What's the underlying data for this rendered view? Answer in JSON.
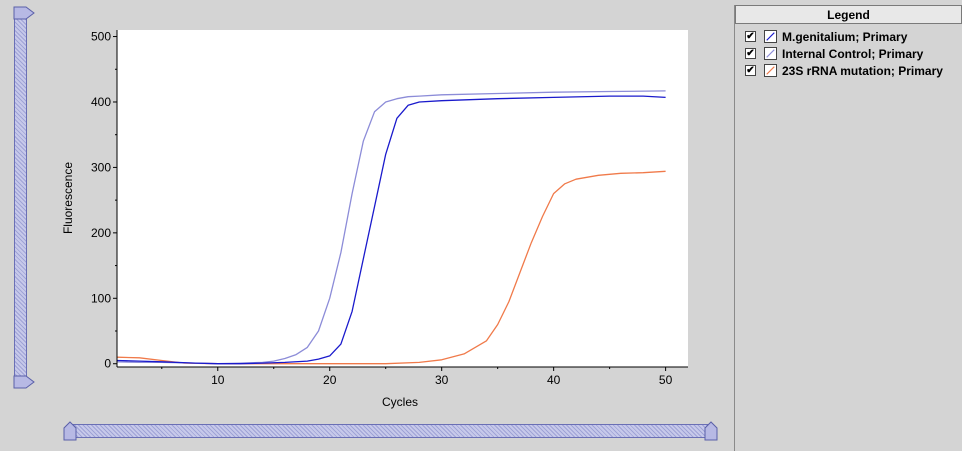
{
  "legend": {
    "title": "Legend",
    "items": [
      {
        "label": "M.genitalium; Primary",
        "checked": true,
        "color": "#1a1acc"
      },
      {
        "label": "Internal Control; Primary",
        "checked": true,
        "color": "#8c8cd8"
      },
      {
        "label": "23S rRNA mutation; Primary",
        "checked": true,
        "color": "#f07a4a"
      }
    ]
  },
  "chart_data": {
    "type": "line",
    "title": "",
    "xlabel": "Cycles",
    "ylabel": "Fluorescence",
    "xlim": [
      1,
      52
    ],
    "ylim": [
      -5,
      510
    ],
    "xticks": [
      10,
      20,
      30,
      40,
      50
    ],
    "yticks": [
      0,
      100,
      200,
      300,
      400,
      500
    ],
    "legend_position": "right-panel",
    "series": [
      {
        "name": "M.genitalium; Primary",
        "color": "#1a1acc",
        "x": [
          1,
          3,
          5,
          8,
          10,
          12,
          14,
          16,
          18,
          19,
          20,
          21,
          22,
          23,
          24,
          25,
          26,
          27,
          28,
          30,
          35,
          40,
          45,
          48,
          50
        ],
        "y": [
          5,
          4,
          3,
          1,
          0,
          0,
          1,
          2,
          4,
          7,
          12,
          30,
          80,
          160,
          240,
          320,
          375,
          395,
          400,
          402,
          405,
          407,
          409,
          409,
          407
        ]
      },
      {
        "name": "Internal Control; Primary",
        "color": "#8c8cd8",
        "x": [
          1,
          3,
          5,
          8,
          10,
          12,
          14,
          15,
          16,
          17,
          18,
          19,
          20,
          21,
          22,
          23,
          24,
          25,
          26,
          27,
          28,
          30,
          35,
          40,
          45,
          50
        ],
        "y": [
          3,
          2,
          2,
          1,
          0,
          1,
          2,
          4,
          8,
          14,
          25,
          50,
          100,
          170,
          260,
          340,
          385,
          400,
          405,
          408,
          409,
          411,
          413,
          415,
          416,
          417
        ]
      },
      {
        "name": "23S rRNA mutation; Primary",
        "color": "#f07a4a",
        "x": [
          1,
          3,
          5,
          7,
          10,
          15,
          20,
          25,
          28,
          30,
          32,
          34,
          35,
          36,
          37,
          38,
          39,
          40,
          41,
          42,
          44,
          46,
          48,
          50
        ],
        "y": [
          10,
          9,
          5,
          1,
          0,
          0,
          0,
          0,
          2,
          6,
          15,
          35,
          60,
          95,
          140,
          185,
          225,
          260,
          275,
          282,
          288,
          291,
          292,
          294
        ]
      }
    ]
  }
}
